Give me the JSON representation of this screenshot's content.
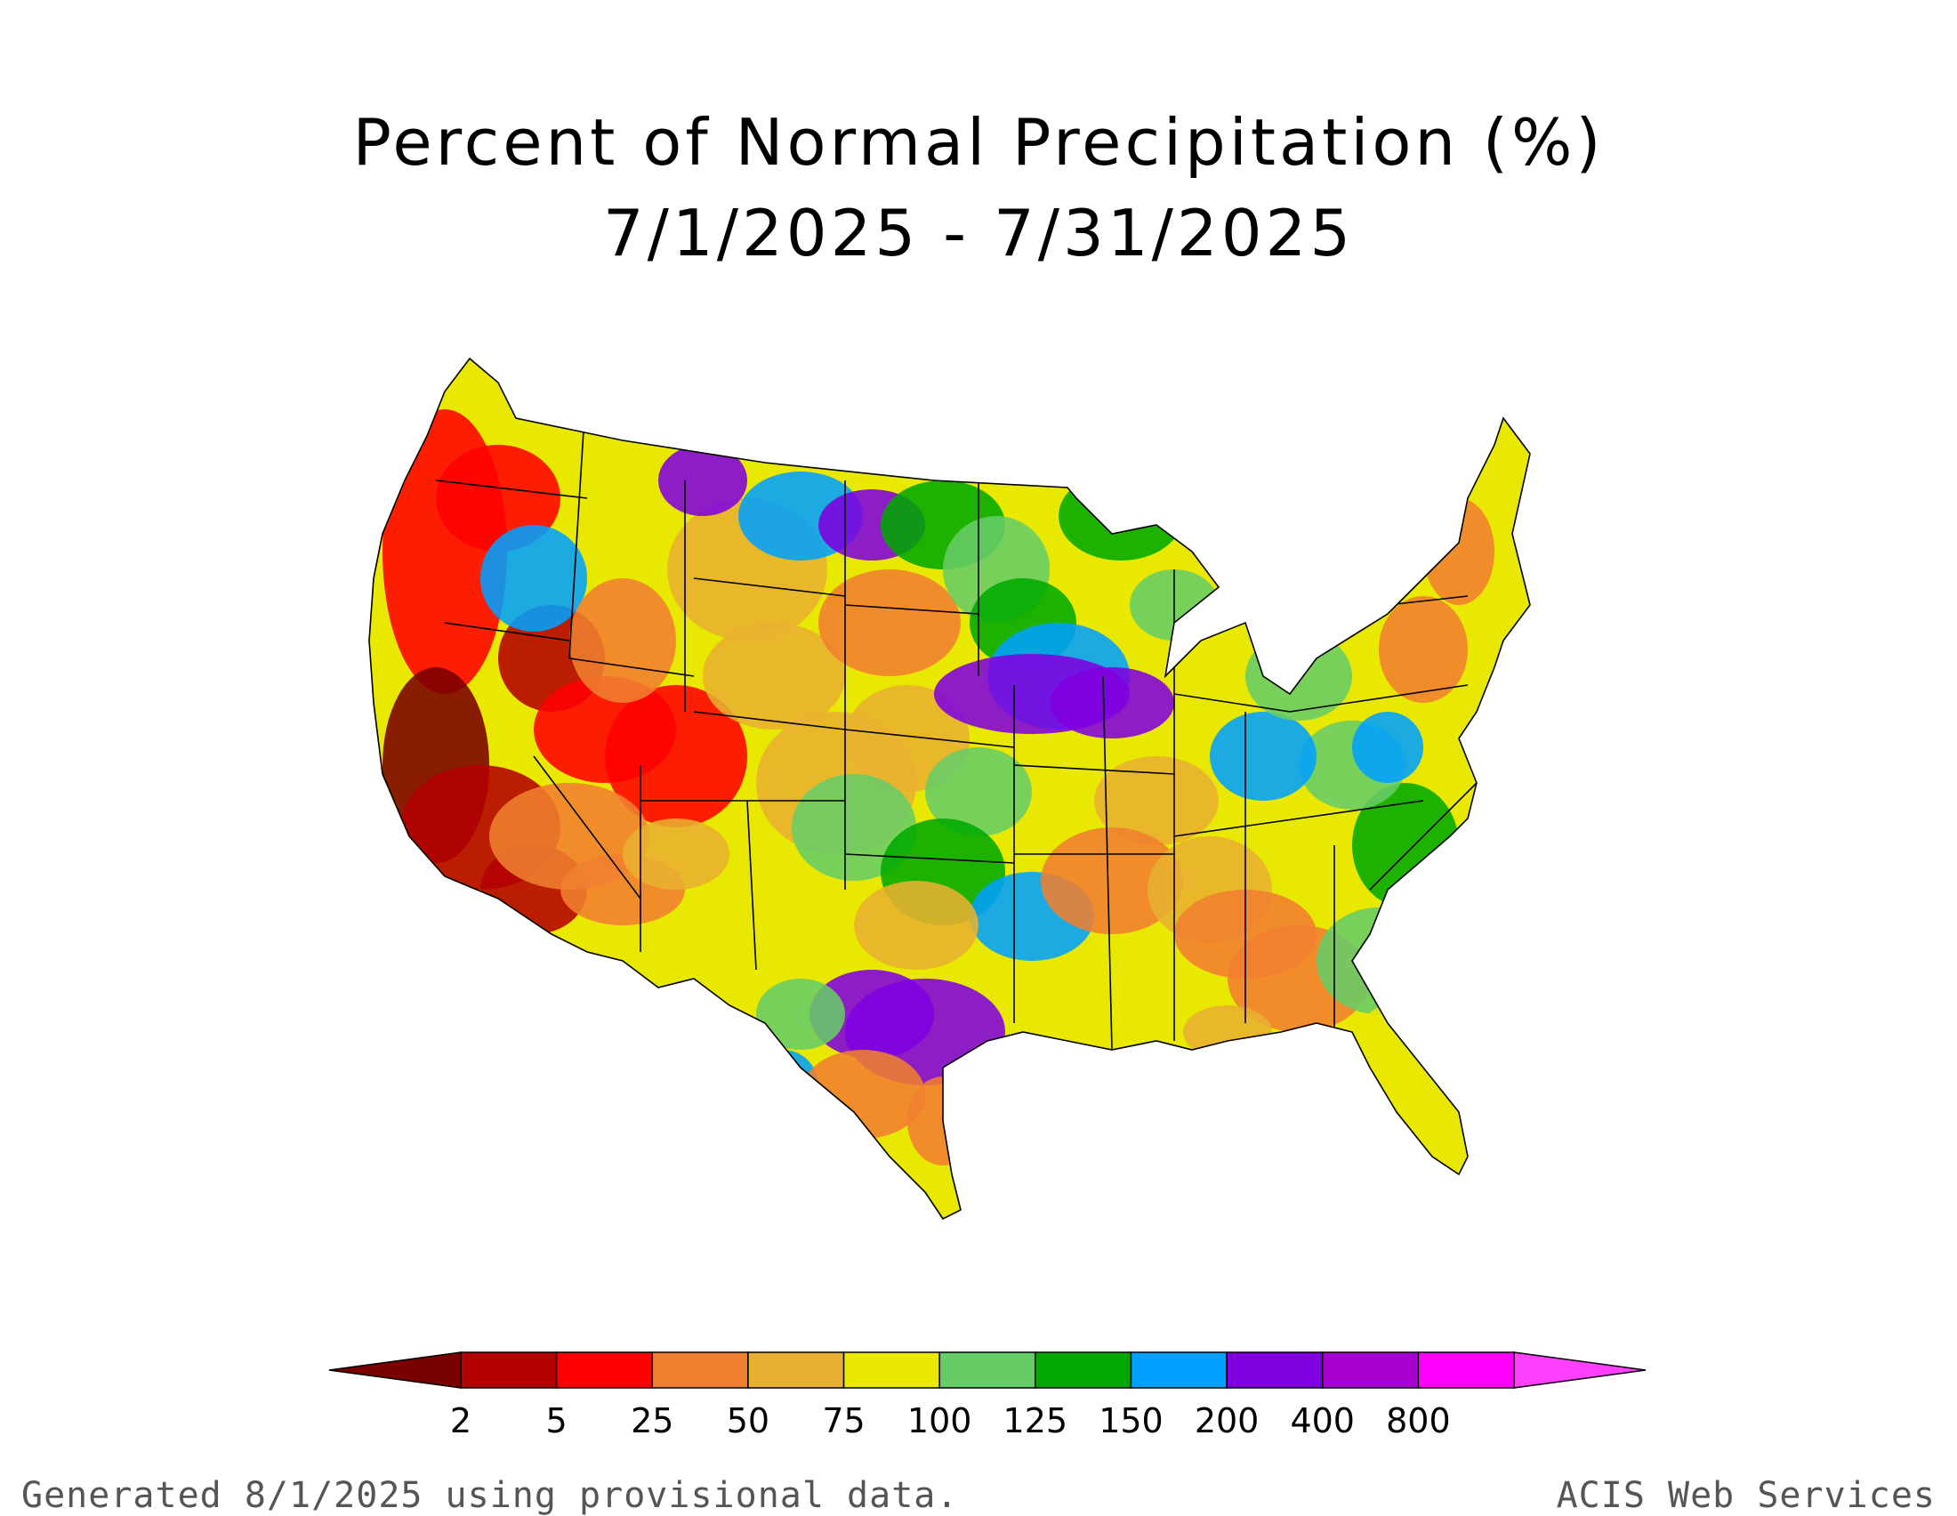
{
  "title": "Percent of Normal Precipitation (%)",
  "subtitle": "7/1/2025 - 7/31/2025",
  "legend": {
    "labels": [
      "2",
      "5",
      "25",
      "50",
      "75",
      "100",
      "125",
      "150",
      "200",
      "400",
      "800"
    ],
    "colors": [
      "#7a0000",
      "#b30000",
      "#ff0000",
      "#f08030",
      "#e8b030",
      "#e8e800",
      "#66cc66",
      "#00a800",
      "#00a0ff",
      "#8000e0",
      "#a800d0",
      "#ff00ff",
      "#ff40ff"
    ]
  },
  "footer": {
    "left": "Generated 8/1/2025 using provisional data.",
    "right": "ACIS Web Services"
  }
}
